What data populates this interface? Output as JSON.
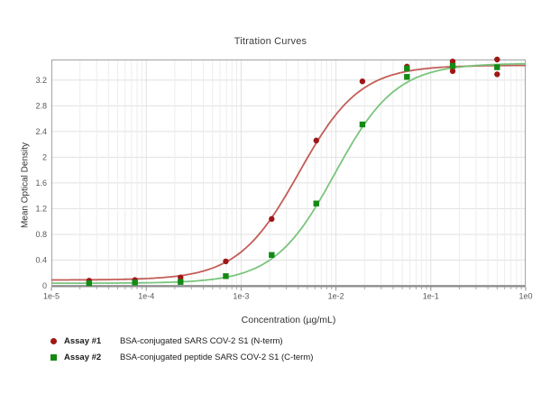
{
  "chart_data": {
    "type": "scatter",
    "title": "Titration Curves",
    "x_axis": {
      "label": "Concentration (µg/mL)",
      "scale": "log",
      "log_range": [
        -5,
        0
      ],
      "ticks": [
        {
          "log_value": -5,
          "label": "1e-5"
        },
        {
          "log_value": -4,
          "label": "1e-4"
        },
        {
          "log_value": -3,
          "label": "1e-3"
        },
        {
          "log_value": -2,
          "label": "1e-2"
        },
        {
          "log_value": -1,
          "label": "1e-1"
        },
        {
          "log_value": 0,
          "label": "1e0"
        }
      ]
    },
    "y_axis": {
      "label": "Mean Optical Density",
      "range": [
        0,
        3.52
      ],
      "ticks": [
        {
          "value": 0,
          "label": "0"
        },
        {
          "value": 0.4,
          "label": "0.4"
        },
        {
          "value": 0.8,
          "label": "0.8"
        },
        {
          "value": 1.2,
          "label": "1.2"
        },
        {
          "value": 1.6,
          "label": "1.6"
        },
        {
          "value": 2,
          "label": "2"
        },
        {
          "value": 2.4,
          "label": "2.4"
        },
        {
          "value": 2.8,
          "label": "2.8"
        },
        {
          "value": 3.2,
          "label": "3.2"
        }
      ]
    },
    "grid": true,
    "legend_position": "bottom-left",
    "concentrations_ug_ml": [
      2.5e-05,
      7.6e-05,
      0.00023,
      0.00069,
      0.0021,
      0.0062,
      0.019,
      0.056,
      0.17,
      0.5
    ],
    "series": [
      {
        "name": "Assay #1",
        "description": "BSA-conjugated SARS COV-2 S1 (N-term)",
        "marker": "circle",
        "marker_color": "#9e1717",
        "curve_color": "#c0544f",
        "od_values": [
          [
            0.08
          ],
          [
            0.09
          ],
          [
            0.13
          ],
          [
            0.38
          ],
          [
            1.04
          ],
          [
            2.26
          ],
          [
            3.18
          ],
          [
            3.41
          ],
          [
            3.49,
            3.34
          ],
          [
            3.52,
            3.29
          ]
        ],
        "fit_4pl": {
          "bottom": 0.09,
          "top": 3.43,
          "log_ec50": -2.39,
          "hill": 1.35
        }
      },
      {
        "name": "Assay #2",
        "description": "BSA-conjugated peptide SARS COV-2 S1 (C-term)",
        "marker": "square",
        "marker_color": "#148a14",
        "curve_color": "#73c276",
        "od_values": [
          [
            0.04
          ],
          [
            0.05
          ],
          [
            0.06
          ],
          [
            0.15
          ],
          [
            0.48
          ],
          [
            1.28
          ],
          [
            2.51
          ],
          [
            3.38,
            3.25
          ],
          [
            3.42
          ],
          [
            3.4
          ]
        ],
        "fit_4pl": {
          "bottom": 0.04,
          "top": 3.46,
          "log_ec50": -2.01,
          "hill": 1.35
        }
      }
    ],
    "colors": {
      "frame": "#a2a2a2",
      "axis_line": "#8c8c8c",
      "grid_major": "#e1e1e1",
      "grid_minor": "#ededed",
      "tick_text": "#595959",
      "title_text": "#3c3c3c"
    }
  }
}
